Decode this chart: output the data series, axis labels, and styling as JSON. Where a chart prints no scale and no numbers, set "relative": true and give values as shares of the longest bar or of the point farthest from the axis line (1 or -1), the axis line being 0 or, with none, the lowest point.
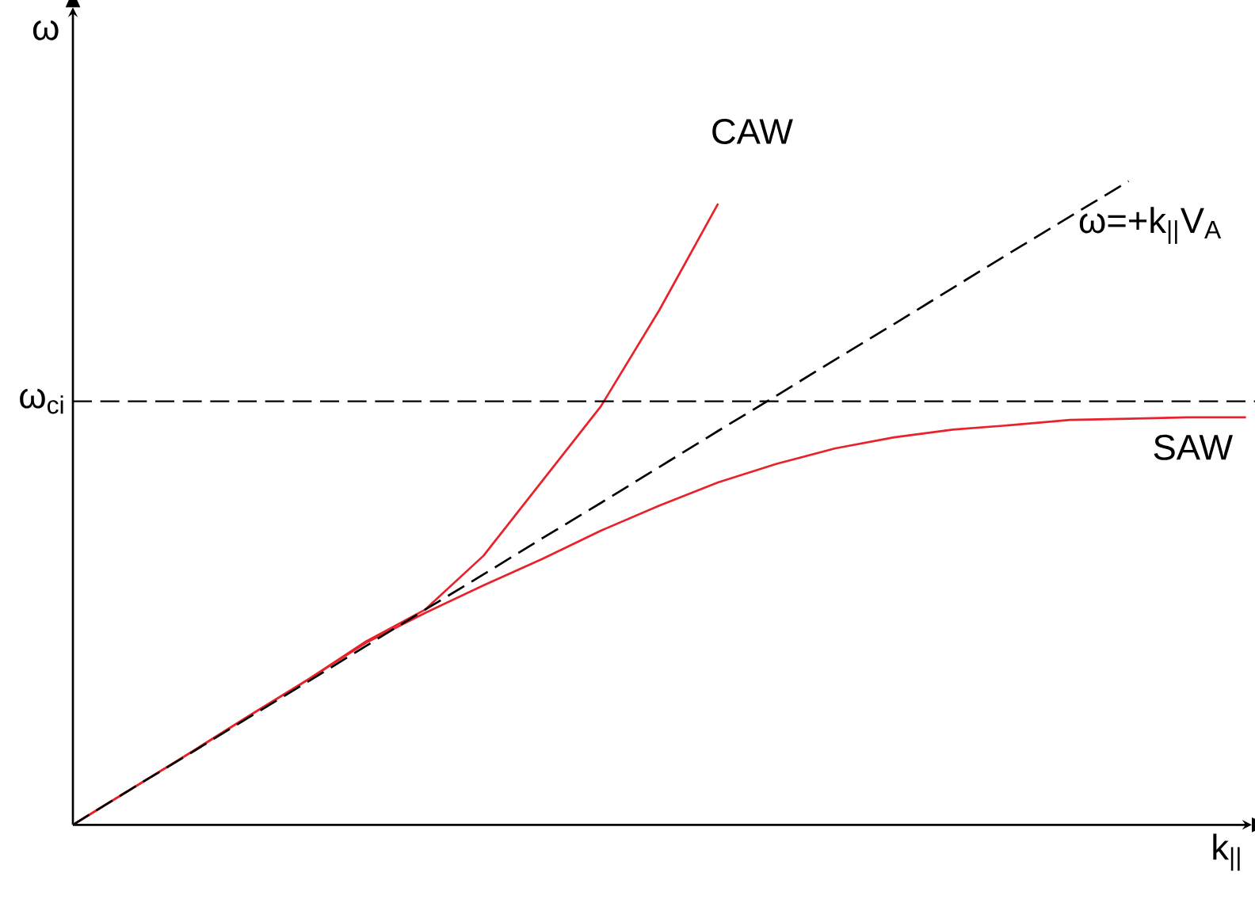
{
  "chart_data": {
    "type": "line",
    "relative": true,
    "xlabel": "k$_{||}$",
    "ylabel": "ω",
    "tick_labels": false,
    "categories": [
      null,
      null,
      null,
      null,
      null,
      null,
      null,
      null,
      null,
      null,
      null,
      null,
      null,
      null,
      null,
      null,
      null,
      null,
      null,
      null,
      null
    ],
    "series": [
      {
        "name": "CAW",
        "color": "#e8212a",
        "values": [
          0,
          0.056,
          0.112,
          0.169,
          0.225,
          0.285,
          0.334,
          0.418,
          0.534,
          0.65,
          0.8,
          0.965,
          null,
          null,
          null,
          null,
          null,
          null,
          null,
          null,
          null
        ]
      },
      {
        "name": "SAW",
        "color": "#e8212a",
        "values": [
          0,
          0.056,
          0.112,
          0.169,
          0.225,
          0.283,
          0.329,
          0.372,
          0.413,
          0.457,
          0.496,
          0.532,
          0.561,
          0.585,
          0.602,
          0.614,
          0.621,
          0.629,
          0.631,
          0.633,
          0.633
        ]
      },
      {
        "name": "ω=+k$_{||}$V$_{A}$",
        "color": "#000000",
        "line_style": "dashed",
        "values": [
          0,
          0.056,
          0.111,
          0.167,
          0.222,
          0.278,
          0.334,
          0.389,
          0.445,
          0.5,
          0.556,
          0.612,
          0.667,
          0.723,
          0.778,
          0.834,
          0.89,
          0.945,
          1,
          null,
          null
        ]
      }
    ],
    "ref_lines": [
      {
        "axis": "y",
        "value": 0.658,
        "label": "ω$_{ci}$",
        "color": "#000000",
        "line_style": "dashed"
      }
    ]
  }
}
